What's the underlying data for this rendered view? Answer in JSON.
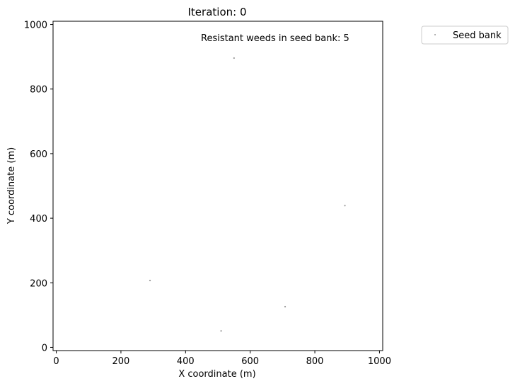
{
  "chart_data": {
    "type": "scatter",
    "title": "Iteration: 0",
    "xlabel": "X coordinate (m)",
    "ylabel": "Y coordinate (m)",
    "annotation": "Resistant weeds in seed bank: 5",
    "xlim": [
      -10,
      1010
    ],
    "ylim": [
      -10,
      1010
    ],
    "xticks": [
      0,
      200,
      400,
      600,
      800,
      1000
    ],
    "yticks": [
      0,
      200,
      400,
      600,
      800,
      1000
    ],
    "grid": false,
    "legend": "outside-top-right",
    "series": [
      {
        "name": "Seed bank",
        "color": "#999999",
        "points": [
          {
            "x": 550,
            "y": 896
          },
          {
            "x": 893,
            "y": 439
          },
          {
            "x": 290,
            "y": 207
          },
          {
            "x": 708,
            "y": 126
          },
          {
            "x": 510,
            "y": 51
          }
        ]
      }
    ]
  }
}
